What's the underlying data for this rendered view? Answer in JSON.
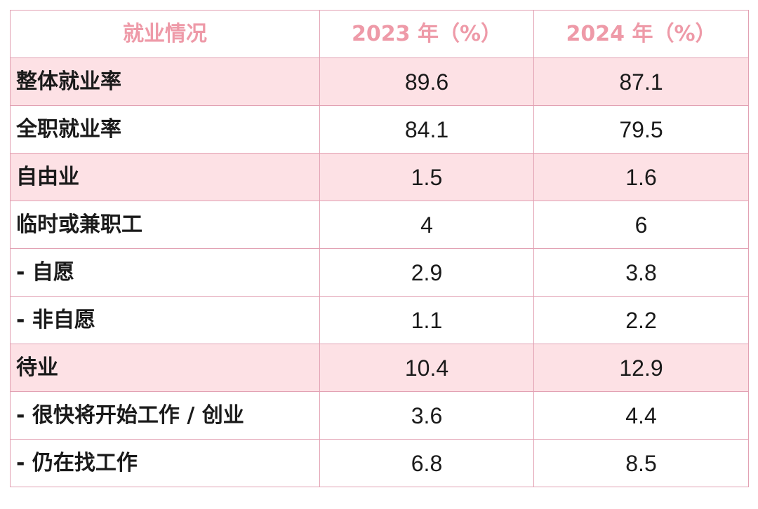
{
  "colors": {
    "header_text": "#ee9aa8",
    "border": "#e2a1b3",
    "highlight_row": "#fde1e5",
    "body_text": "#1a1a1a"
  },
  "chart_data": {
    "type": "table",
    "columns": [
      "就业情况",
      "2023 年（%）",
      "2024 年（%）"
    ],
    "rows": [
      {
        "label": "整体就业率",
        "values": [
          "89.6",
          "87.1"
        ],
        "highlight": true
      },
      {
        "label": "全职就业率",
        "values": [
          "84.1",
          "79.5"
        ],
        "highlight": false
      },
      {
        "label": "自由业",
        "values": [
          "1.5",
          "1.6"
        ],
        "highlight": true
      },
      {
        "label": "临时或兼职工",
        "values": [
          "4",
          "6"
        ],
        "highlight": false
      },
      {
        "label": "- 自愿",
        "values": [
          "2.9",
          "3.8"
        ],
        "highlight": false
      },
      {
        "label": "- 非自愿",
        "values": [
          "1.1",
          "2.2"
        ],
        "highlight": false
      },
      {
        "label": "待业",
        "values": [
          "10.4",
          "12.9"
        ],
        "highlight": true
      },
      {
        "label": "- 很快将开始工作 / 创业",
        "values": [
          "3.6",
          "4.4"
        ],
        "highlight": false
      },
      {
        "label": "- 仍在找工作",
        "values": [
          "6.8",
          "8.5"
        ],
        "highlight": false
      }
    ]
  }
}
